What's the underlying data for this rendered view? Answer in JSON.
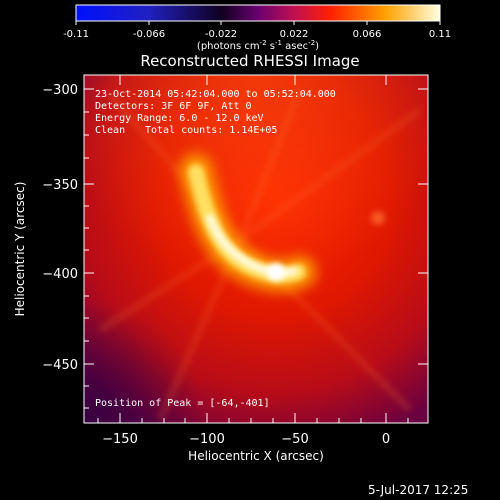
{
  "colorbar": {
    "ticks": [
      "-0.11",
      "-0.066",
      "-0.022",
      "0.022",
      "0.066",
      "0.11"
    ],
    "units_main": "(photons cm",
    "units_exp1": "-2",
    "units_mid": " s",
    "units_exp2": "-1",
    "units_end": " asec",
    "units_exp3": "-2",
    "units_close": ")",
    "colors": [
      "#0000ff",
      "#000000",
      "#9900cc",
      "#ff0000",
      "#ffff00",
      "#ffffff"
    ]
  },
  "plot": {
    "title": "Reconstructed RHESSI Image",
    "xlabel": "Heliocentric X (arcsec)",
    "ylabel": "Heliocentric Y (arcsec)",
    "x_ticks": [
      "−150",
      "−100",
      "−50",
      "0"
    ],
    "y_ticks": [
      "−300",
      "−350",
      "−400",
      "−450"
    ],
    "xlim": [
      -172,
      22
    ],
    "ylim": [
      -485,
      -290
    ],
    "info": {
      "line1": "23-Oct-2014 05:42:04.000 to 05:52:04.000",
      "line2": "Detectors: 3F 6F 9F, Att 0",
      "line3": "Energy Range: 6.0 - 12.0 keV",
      "line4_a": "Clean",
      "line4_b": "Total counts: 1.14E+05"
    },
    "peak_label": "Position of Peak = [-64,-401]"
  },
  "footer": {
    "timestamp": "5-Jul-2017 12:25"
  }
}
